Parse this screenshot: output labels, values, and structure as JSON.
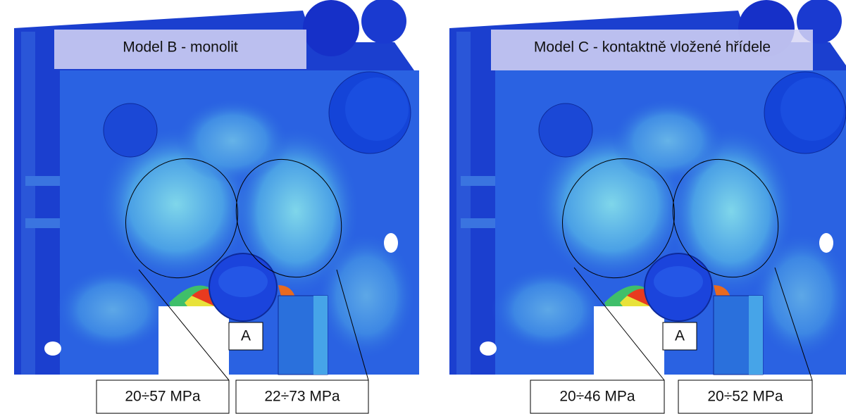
{
  "panels": [
    {
      "title": "Model B - monolit",
      "marker": "A",
      "ranges": [
        "20÷57 MPa",
        "22÷73 MPa"
      ]
    },
    {
      "title": "Model C - kontaktně vložené hřídele",
      "marker": "A",
      "ranges": [
        "20÷46 MPa",
        "20÷52 MPa"
      ]
    }
  ]
}
